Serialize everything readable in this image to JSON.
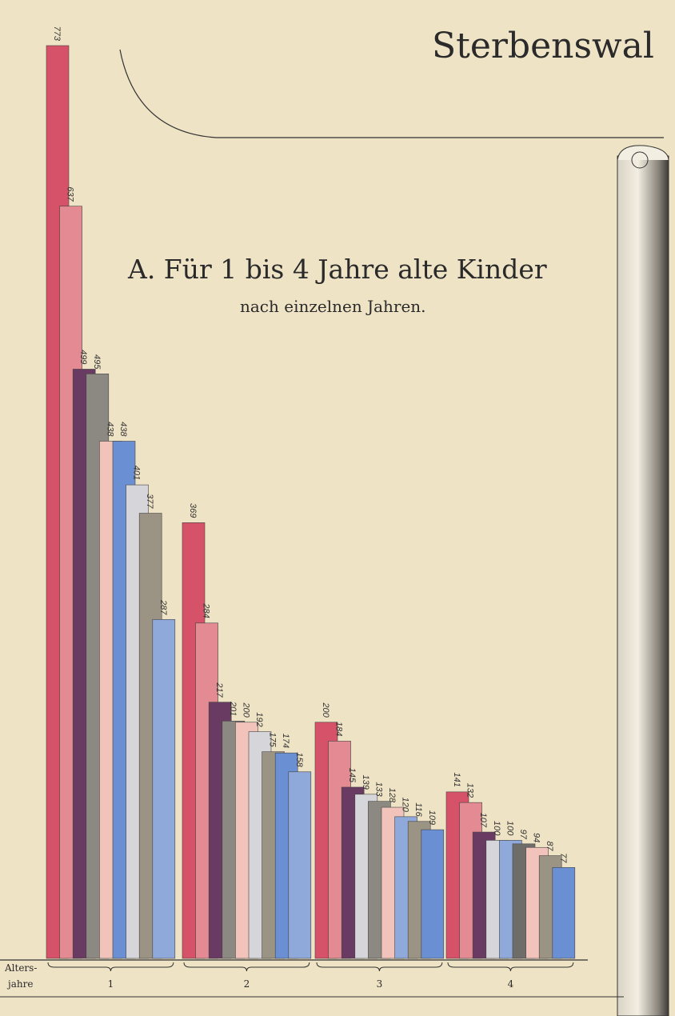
{
  "chart_data": {
    "type": "grouped-bar",
    "header": "Sterbenswal",
    "title": "A. Für 1 bis 4 Jahre alte Kinder",
    "subtitle": "nach einzelnen Jahren.",
    "x_label": [
      "Alters-",
      "jahre"
    ],
    "categories": [
      "1",
      "2",
      "3",
      "4"
    ],
    "groups": [
      {
        "values": [
          773,
          637,
          499,
          495,
          438,
          438,
          401,
          377,
          287
        ],
        "colors": [
          "#d65268",
          "#e48a92",
          "#6a3b62",
          "#8c8882",
          "#f1c3ba",
          "#6a8fd2",
          "#d5d5da",
          "#9b9383",
          "#8fa9da"
        ]
      },
      {
        "values": [
          369,
          284,
          217,
          201,
          200,
          192,
          175,
          174,
          158
        ],
        "colors": [
          "#d65268",
          "#e48a92",
          "#6a3b62",
          "#8c8882",
          "#f1c3ba",
          "#d5d5da",
          "#9b9383",
          "#6a8fd2",
          "#8fa9da"
        ]
      },
      {
        "values": [
          200,
          184,
          145,
          139,
          133,
          128,
          120,
          116,
          109
        ],
        "colors": [
          "#d65268",
          "#e48a92",
          "#6a3b62",
          "#d5d5da",
          "#8c8882",
          "#f1c3ba",
          "#8fa9da",
          "#9b9383",
          "#6a8fd2"
        ]
      },
      {
        "values": [
          141,
          132,
          107,
          100,
          100,
          97,
          94,
          87,
          77
        ],
        "colors": [
          "#d65268",
          "#e48a92",
          "#6a3b62",
          "#d5d5da",
          "#8fa9da",
          "#6f6d6a",
          "#f1c3ba",
          "#9b9383",
          "#6a8fd2"
        ]
      }
    ]
  }
}
